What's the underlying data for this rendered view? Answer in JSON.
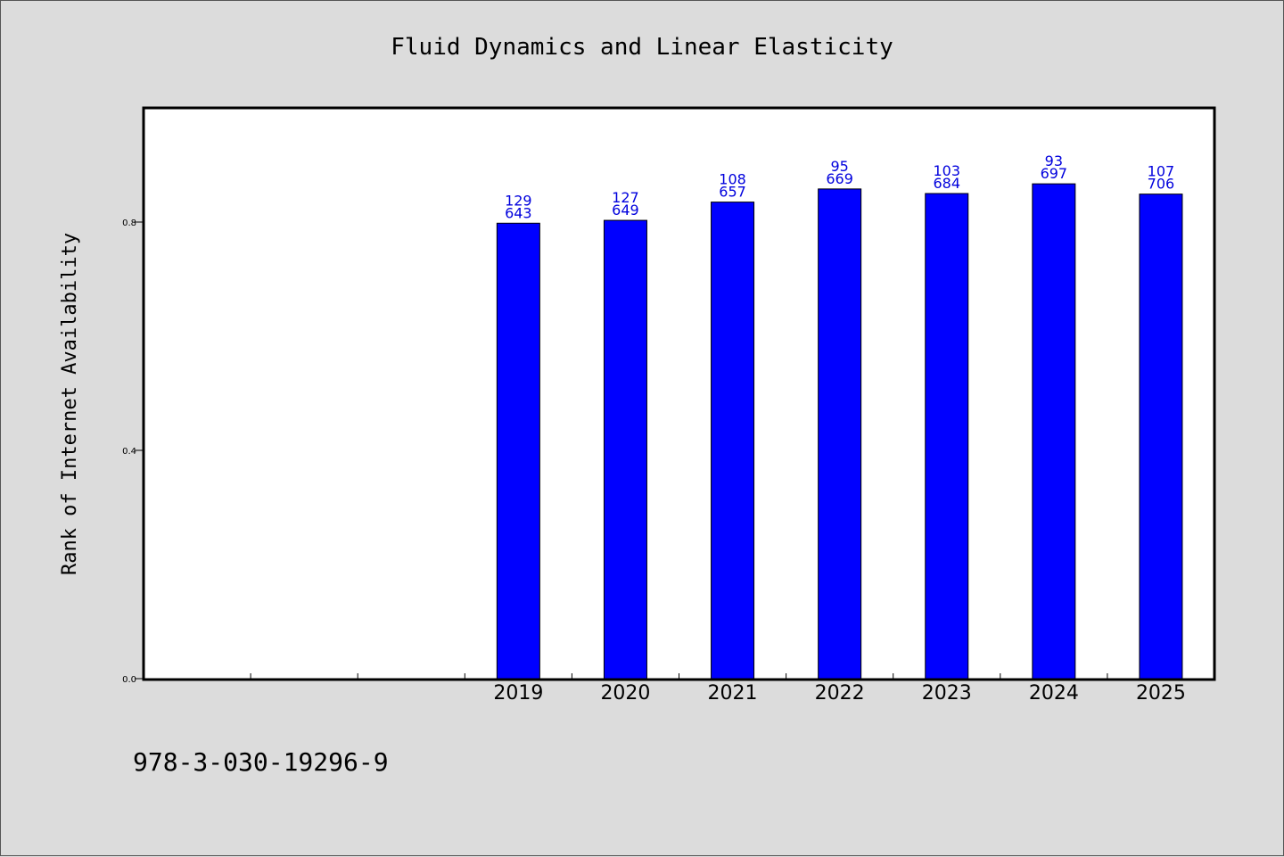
{
  "chart_data": {
    "type": "bar",
    "title": "Fluid Dynamics and Linear Elasticity",
    "xlabel": "",
    "ylabel": "Rank of Internet Availability",
    "categories": [
      "",
      "",
      "",
      "2019",
      "2020",
      "2021",
      "2022",
      "2023",
      "2024",
      "2025"
    ],
    "values": [
      null,
      null,
      null,
      0.798,
      0.803,
      0.835,
      0.858,
      0.85,
      0.867,
      0.849
    ],
    "annotations_top": [
      "",
      "",
      "",
      "129",
      "127",
      "108",
      "95",
      "103",
      "93",
      "107"
    ],
    "annotations_bottom": [
      "",
      "",
      "",
      "643",
      "649",
      "657",
      "669",
      "684",
      "697",
      "706"
    ],
    "yticks": [
      "0.0",
      "0.4",
      "0.8"
    ],
    "ytick_values": [
      0.0,
      0.4,
      0.8
    ],
    "ylim": [
      0.0,
      1.0
    ],
    "grid": false,
    "bar_color": "#0000ff",
    "label_color": "#0000dd"
  },
  "footer": {
    "isbn": "978-3-030-19296-9"
  }
}
